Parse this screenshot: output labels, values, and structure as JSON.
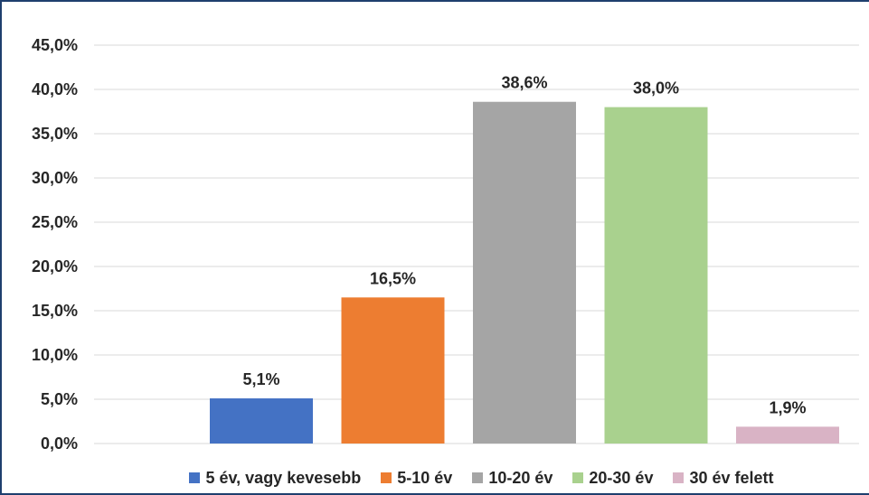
{
  "chart_data": {
    "type": "bar",
    "categories": [
      "5 év, vagy kevesebb",
      "5-10 év",
      "10-20 év",
      "20-30 év",
      "30 év felett"
    ],
    "values": [
      5.1,
      16.5,
      38.6,
      38.0,
      1.9
    ],
    "data_labels": [
      "5,1%",
      "16,5%",
      "38,6%",
      "38,0%",
      "1,9%"
    ],
    "colors": [
      "#4472c4",
      "#ed7d31",
      "#a5a5a5",
      "#a9d18e",
      "#d9b3c5"
    ],
    "ylim": [
      0,
      45
    ],
    "yticks": [
      {
        "value": 0,
        "label": "0,0%"
      },
      {
        "value": 5,
        "label": "5,0%"
      },
      {
        "value": 10,
        "label": "10,0%"
      },
      {
        "value": 15,
        "label": "15,0%"
      },
      {
        "value": 20,
        "label": "20,0%"
      },
      {
        "value": 25,
        "label": "25,0%"
      },
      {
        "value": 30,
        "label": "30,0%"
      },
      {
        "value": 35,
        "label": "35,0%"
      },
      {
        "value": 40,
        "label": "40,0%"
      },
      {
        "value": 45,
        "label": "45,0%"
      }
    ],
    "grid": true,
    "legend_position": "bottom",
    "gridline_color": "#d9d9d9"
  }
}
